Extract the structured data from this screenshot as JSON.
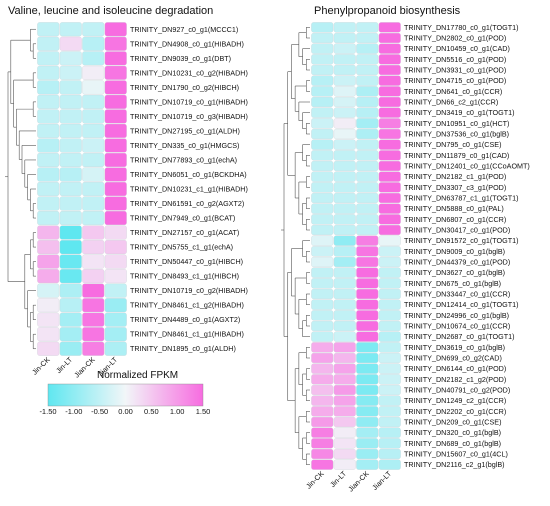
{
  "chart_data": [
    {
      "type": "heatmap",
      "title": "Valine, leucine and isoleucine degradation",
      "columns": [
        "Jin-CK",
        "Jin-LT",
        "Jian-CK",
        "Jian-LT"
      ],
      "rows": [
        {
          "label": "TRINITY_DN927_c0_g1(MCCC1)",
          "values": [
            -0.5,
            -0.5,
            -0.5,
            1.5
          ]
        },
        {
          "label": "TRINITY_DN4908_c0_g1(HIBADH)",
          "values": [
            -0.5,
            0.3,
            -0.6,
            1.4
          ]
        },
        {
          "label": "TRINITY_DN9039_c0_g1(DBT)",
          "values": [
            -0.5,
            -0.4,
            -0.6,
            1.5
          ]
        },
        {
          "label": "TRINITY_DN10231_c0_g2(HIBADH)",
          "values": [
            -0.5,
            -0.4,
            0.1,
            1.4
          ]
        },
        {
          "label": "TRINITY_DN1790_c0_g2(HIBCH)",
          "values": [
            -0.6,
            -0.5,
            -0.1,
            1.5
          ]
        },
        {
          "label": "TRINITY_DN10719_c0_g1(HIBADH)",
          "values": [
            -0.5,
            -0.5,
            -0.5,
            1.5
          ]
        },
        {
          "label": "TRINITY_DN10719_c0_g3(HIBADH)",
          "values": [
            -0.5,
            -0.5,
            -0.5,
            1.5
          ]
        },
        {
          "label": "TRINITY_DN27195_c0_g1(ALDH)",
          "values": [
            -0.5,
            -0.5,
            -0.5,
            1.5
          ]
        },
        {
          "label": "TRINITY_DN335_c0_g1(HMGCS)",
          "values": [
            -0.6,
            -0.5,
            -0.4,
            1.5
          ]
        },
        {
          "label": "TRINITY_DN77893_c0_g1(echA)",
          "values": [
            -0.5,
            -0.5,
            -0.5,
            1.5
          ]
        },
        {
          "label": "TRINITY_DN6051_c0_g1(BCKDHA)",
          "values": [
            -0.6,
            -0.6,
            -0.3,
            1.5
          ]
        },
        {
          "label": "TRINITY_DN10231_c1_g1(HIBADH)",
          "values": [
            -0.5,
            -0.5,
            -0.5,
            1.5
          ]
        },
        {
          "label": "TRINITY_DN61591_c0_g2(AGXT2)",
          "values": [
            -0.5,
            -0.5,
            -0.5,
            1.5
          ]
        },
        {
          "label": "TRINITY_DN7949_c0_g1(BCAT)",
          "values": [
            -0.5,
            -0.5,
            -0.5,
            1.5
          ]
        },
        {
          "label": "TRINITY_DN27157_c0_g1(ACAT)",
          "values": [
            0.7,
            -1.5,
            0.5,
            0.3
          ]
        },
        {
          "label": "TRINITY_DN5755_c1_g1(echA)",
          "values": [
            0.6,
            -1.5,
            0.4,
            0.5
          ]
        },
        {
          "label": "TRINITY_DN50447_c0_g1(HIBCH)",
          "values": [
            0.9,
            -1.4,
            0.2,
            0.3
          ]
        },
        {
          "label": "TRINITY_DN8493_c1_g1(HIBCH)",
          "values": [
            0.8,
            -1.4,
            0.4,
            0.2
          ]
        },
        {
          "label": "TRINITY_DN10719_c0_g2(HIBADH)",
          "values": [
            -0.3,
            -0.7,
            1.5,
            -0.5
          ]
        },
        {
          "label": "TRINITY_DN8461_c1_g2(HIBADH)",
          "values": [
            0.1,
            -0.6,
            1.4,
            -0.9
          ]
        },
        {
          "label": "TRINITY_DN4489_c0_g1(AGXT2)",
          "values": [
            0.2,
            -0.8,
            1.4,
            -0.8
          ]
        },
        {
          "label": "TRINITY_DN8461_c1_g1(HIBADH)",
          "values": [
            0.2,
            -0.8,
            1.4,
            -0.8
          ]
        },
        {
          "label": "TRINITY_DN1895_c0_g1(ALDH)",
          "values": [
            0.3,
            -0.9,
            1.3,
            -0.7
          ]
        }
      ],
      "color_scale": {
        "title": "Normalized FPKM",
        "min": -1.5,
        "max": 1.5,
        "ticks": [
          "-1.50",
          "-1.00",
          "-0.50",
          "0.00",
          "0.50",
          "1.00",
          "1.50"
        ],
        "low_color": "#5fe7f0",
        "mid_color": "#f2f6f8",
        "high_color": "#f76ce0"
      }
    },
    {
      "type": "heatmap",
      "title": "Phenylpropanoid biosynthesis",
      "columns": [
        "Jin-CK",
        "Jin-LT",
        "Jian-CK",
        "Jian-LT"
      ],
      "rows": [
        {
          "label": "TRINITY_DN17780_c0_g1(TOGT1)",
          "values": [
            -0.6,
            -0.5,
            -0.5,
            1.5
          ]
        },
        {
          "label": "TRINITY_DN2802_c0_g1(POD)",
          "values": [
            -0.5,
            -0.5,
            -0.5,
            1.5
          ]
        },
        {
          "label": "TRINITY_DN10459_c0_g1(CAD)",
          "values": [
            -0.5,
            -0.4,
            -0.6,
            1.5
          ]
        },
        {
          "label": "TRINITY_DN5516_c0_g1(POD)",
          "values": [
            -0.5,
            -0.5,
            -0.5,
            1.5
          ]
        },
        {
          "label": "TRINITY_DN3931_c0_g1(POD)",
          "values": [
            -0.5,
            -0.5,
            -0.5,
            1.5
          ]
        },
        {
          "label": "TRINITY_DN4715_c0_g1(POD)",
          "values": [
            -0.6,
            -0.4,
            -0.5,
            1.5
          ]
        },
        {
          "label": "TRINITY_DN641_c0_g1(CCR)",
          "values": [
            -0.6,
            -0.2,
            -0.7,
            1.5
          ]
        },
        {
          "label": "TRINITY_DN66_c2_g1(CCR)",
          "values": [
            -0.6,
            -0.3,
            -0.6,
            1.5
          ]
        },
        {
          "label": "TRINITY_DN3419_c0_g1(TOGT1)",
          "values": [
            -0.5,
            -0.4,
            -0.6,
            1.5
          ]
        },
        {
          "label": "TRINITY_DN10951_c0_g1(HCT)",
          "values": [
            -0.4,
            0.1,
            -0.8,
            1.3
          ]
        },
        {
          "label": "TRINITY_DN37536_c0_g1(bglB)",
          "values": [
            -0.5,
            -0.1,
            -0.7,
            1.4
          ]
        },
        {
          "label": "TRINITY_DN795_c0_g1(CSE)",
          "values": [
            -0.6,
            -0.4,
            -0.5,
            1.5
          ]
        },
        {
          "label": "TRINITY_DN11879_c0_g1(CAD)",
          "values": [
            -0.5,
            -0.5,
            -0.5,
            1.5
          ]
        },
        {
          "label": "TRINITY_DN12401_c0_g1(CCoAOMT)",
          "values": [
            -0.5,
            -0.5,
            -0.5,
            1.5
          ]
        },
        {
          "label": "TRINITY_DN2182_c1_g1(POD)",
          "values": [
            -0.5,
            -0.5,
            -0.5,
            1.5
          ]
        },
        {
          "label": "TRINITY_DN3307_c3_g1(POD)",
          "values": [
            -0.5,
            -0.5,
            -0.5,
            1.5
          ]
        },
        {
          "label": "TRINITY_DN63787_c1_g1(TOGT1)",
          "values": [
            -0.5,
            -0.5,
            -0.5,
            1.5
          ]
        },
        {
          "label": "TRINITY_DN5888_c0_g1(PAL)",
          "values": [
            -0.5,
            -0.5,
            -0.5,
            1.5
          ]
        },
        {
          "label": "TRINITY_DN6807_c0_g1(CCR)",
          "values": [
            -0.5,
            -0.5,
            -0.5,
            1.5
          ]
        },
        {
          "label": "TRINITY_DN30417_c0_g1(POD)",
          "values": [
            -0.5,
            -0.5,
            -0.5,
            1.5
          ]
        },
        {
          "label": "TRINITY_DN91572_c0_g1(TOGT1)",
          "values": [
            -0.2,
            -1.0,
            1.3,
            -0.1
          ]
        },
        {
          "label": "TRINITY_DN9009_c0_g1(bglB)",
          "values": [
            -0.4,
            -0.6,
            1.4,
            -0.4
          ]
        },
        {
          "label": "TRINITY_DN44379_c0_g1(POD)",
          "values": [
            -0.2,
            -0.8,
            1.4,
            -0.4
          ]
        },
        {
          "label": "TRINITY_DN3627_c0_g1(bglB)",
          "values": [
            -0.5,
            -0.5,
            1.5,
            -0.5
          ]
        },
        {
          "label": "TRINITY_DN675_c0_g1(bglB)",
          "values": [
            -0.5,
            -0.5,
            1.5,
            -0.5
          ]
        },
        {
          "label": "TRINITY_DN33447_c0_g1(CCR)",
          "values": [
            -0.5,
            -0.5,
            1.5,
            -0.5
          ]
        },
        {
          "label": "TRINITY_DN12414_c0_g1(TOGT1)",
          "values": [
            -0.5,
            -0.5,
            1.5,
            -0.5
          ]
        },
        {
          "label": "TRINITY_DN24996_c0_g1(bglB)",
          "values": [
            -0.5,
            -0.5,
            1.5,
            -0.5
          ]
        },
        {
          "label": "TRINITY_DN10674_c0_g1(CCR)",
          "values": [
            -0.5,
            -0.5,
            1.5,
            -0.5
          ]
        },
        {
          "label": "TRINITY_DN2687_c0_g1(TOGT1)",
          "values": [
            -0.5,
            -0.4,
            1.5,
            -0.6
          ]
        },
        {
          "label": "TRINITY_DN3619_c0_g1(bglB)",
          "values": [
            0.8,
            0.9,
            -1.2,
            -0.5
          ]
        },
        {
          "label": "TRINITY_DN699_c0_g2(CAD)",
          "values": [
            0.9,
            0.7,
            -1.2,
            -0.4
          ]
        },
        {
          "label": "TRINITY_DN6144_c0_g1(POD)",
          "values": [
            0.7,
            0.9,
            -1.2,
            -0.4
          ]
        },
        {
          "label": "TRINITY_DN2182_c1_g2(POD)",
          "values": [
            0.8,
            0.8,
            -1.2,
            -0.4
          ]
        },
        {
          "label": "TRINITY_DN40791_c0_g2(POD)",
          "values": [
            0.6,
            1.0,
            -1.2,
            -0.4
          ]
        },
        {
          "label": "TRINITY_DN1249_c2_g1(CCR)",
          "values": [
            0.7,
            0.9,
            -1.1,
            -0.5
          ]
        },
        {
          "label": "TRINITY_DN2202_c0_g1(CCR)",
          "values": [
            0.8,
            0.8,
            -1.1,
            -0.5
          ]
        },
        {
          "label": "TRINITY_DN209_c0_g1(CSE)",
          "values": [
            1.0,
            0.5,
            -1.0,
            -0.5
          ]
        },
        {
          "label": "TRINITY_DN320_c0_g1(bglB)",
          "values": [
            1.3,
            0.1,
            -0.8,
            -0.6
          ]
        },
        {
          "label": "TRINITY_DN689_c0_g1(bglB)",
          "values": [
            1.3,
            0.2,
            -0.9,
            -0.6
          ]
        },
        {
          "label": "TRINITY_DN15607_c0_g1(4CL)",
          "values": [
            1.2,
            0.3,
            -0.9,
            -0.6
          ]
        },
        {
          "label": "TRINITY_DN2116_c2_g1(bglB)",
          "values": [
            1.4,
            0.1,
            -0.8,
            -0.7
          ]
        }
      ]
    }
  ]
}
